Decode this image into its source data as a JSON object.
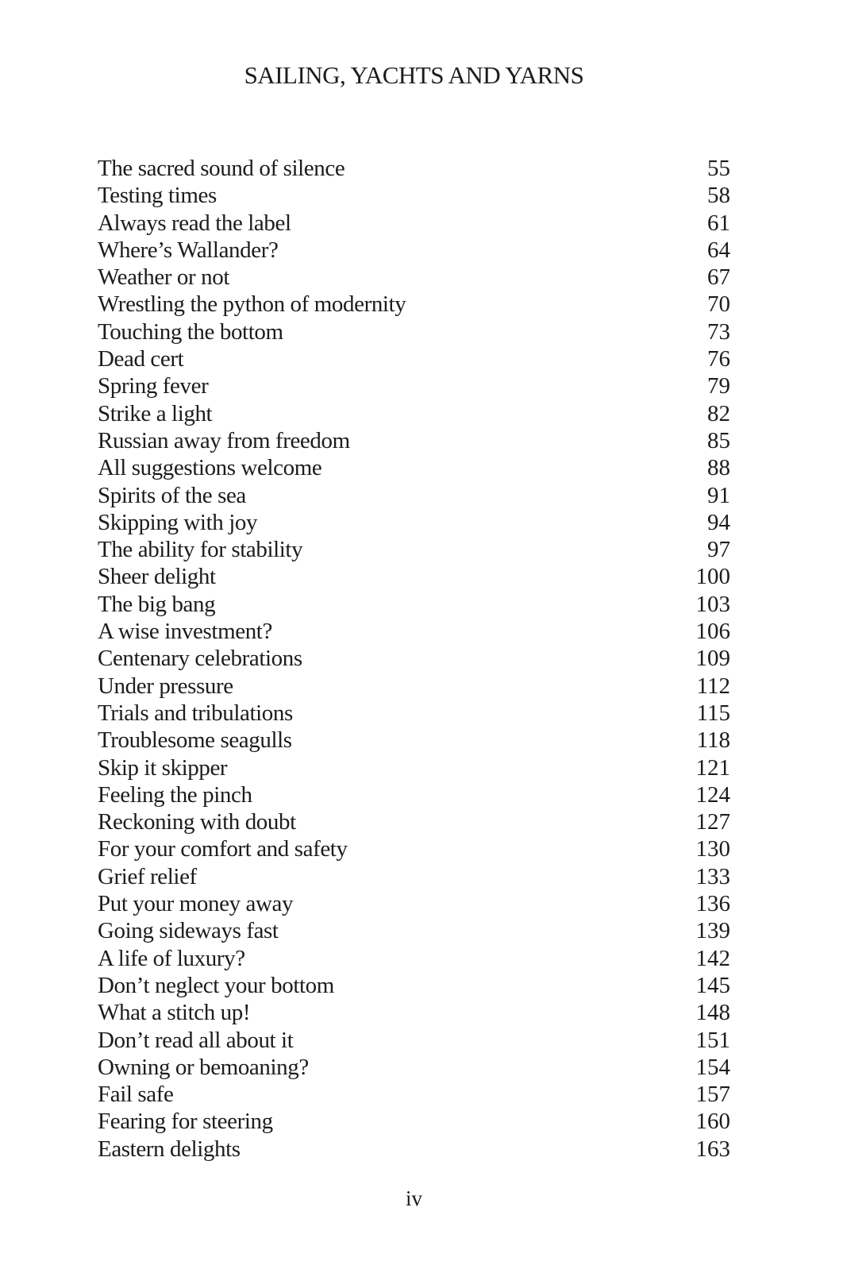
{
  "page": {
    "header": "SAILING, YACHTS AND YARNS",
    "folio": "iv"
  },
  "toc": {
    "entries": [
      {
        "title": "The sacred sound of silence",
        "page": "55"
      },
      {
        "title": "Testing times",
        "page": "58"
      },
      {
        "title": "Always read the label",
        "page": "61"
      },
      {
        "title": "Where’s Wallander?",
        "page": "64"
      },
      {
        "title": "Weather or not",
        "page": "67"
      },
      {
        "title": "Wrestling the python of modernity",
        "page": "70"
      },
      {
        "title": "Touching the bottom",
        "page": "73"
      },
      {
        "title": "Dead cert",
        "page": "76"
      },
      {
        "title": "Spring fever",
        "page": "79"
      },
      {
        "title": "Strike a light",
        "page": "82"
      },
      {
        "title": "Russian away from freedom",
        "page": "85"
      },
      {
        "title": "All suggestions welcome",
        "page": "88"
      },
      {
        "title": "Spirits of the sea",
        "page": "91"
      },
      {
        "title": "Skipping with joy",
        "page": "94"
      },
      {
        "title": "The ability for stability",
        "page": "97"
      },
      {
        "title": "Sheer delight",
        "page": "100"
      },
      {
        "title": "The big bang",
        "page": "103"
      },
      {
        "title": "A wise investment?",
        "page": "106"
      },
      {
        "title": "Centenary celebrations",
        "page": "109"
      },
      {
        "title": "Under pressure",
        "page": "112"
      },
      {
        "title": "Trials and tribulations",
        "page": "115"
      },
      {
        "title": "Troublesome seagulls",
        "page": "118"
      },
      {
        "title": "Skip it skipper",
        "page": "121"
      },
      {
        "title": "Feeling the pinch",
        "page": "124"
      },
      {
        "title": "Reckoning with doubt",
        "page": "127"
      },
      {
        "title": "For your comfort and safety",
        "page": "130"
      },
      {
        "title": "Grief relief",
        "page": "133"
      },
      {
        "title": "Put your money away",
        "page": "136"
      },
      {
        "title": "Going sideways fast",
        "page": "139"
      },
      {
        "title": "A life of luxury?",
        "page": "142"
      },
      {
        "title": "Don’t neglect your bottom",
        "page": "145"
      },
      {
        "title": "What a stitch up!",
        "page": "148"
      },
      {
        "title": "Don’t read all about it",
        "page": "151"
      },
      {
        "title": "Owning or bemoaning?",
        "page": "154"
      },
      {
        "title": "Fail safe",
        "page": "157"
      },
      {
        "title": "Fearing for steering",
        "page": "160"
      },
      {
        "title": "Eastern delights",
        "page": "163"
      }
    ]
  }
}
